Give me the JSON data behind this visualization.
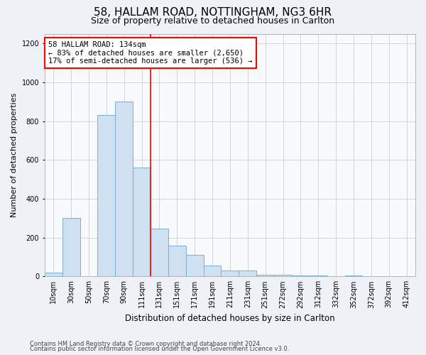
{
  "title": "58, HALLAM ROAD, NOTTINGHAM, NG3 6HR",
  "subtitle": "Size of property relative to detached houses in Carlton",
  "xlabel": "Distribution of detached houses by size in Carlton",
  "ylabel": "Number of detached properties",
  "categories": [
    "10sqm",
    "30sqm",
    "50sqm",
    "70sqm",
    "90sqm",
    "111sqm",
    "131sqm",
    "151sqm",
    "171sqm",
    "191sqm",
    "211sqm",
    "231sqm",
    "251sqm",
    "272sqm",
    "292sqm",
    "312sqm",
    "332sqm",
    "352sqm",
    "372sqm",
    "392sqm",
    "412sqm"
  ],
  "values": [
    20,
    300,
    0,
    830,
    900,
    560,
    245,
    160,
    110,
    55,
    30,
    30,
    10,
    10,
    5,
    5,
    0,
    5,
    0,
    0,
    0
  ],
  "bar_color": "#cfe0f0",
  "bar_edge_color": "#7bafd4",
  "annotation_text": "58 HALLAM ROAD: 134sqm\n← 83% of detached houses are smaller (2,650)\n17% of semi-detached houses are larger (536) →",
  "annotation_box_color": "white",
  "annotation_box_edge": "red",
  "ylim": [
    0,
    1250
  ],
  "yticks": [
    0,
    200,
    400,
    600,
    800,
    1000,
    1200
  ],
  "red_line_bin": 6,
  "footer1": "Contains HM Land Registry data © Crown copyright and database right 2024.",
  "footer2": "Contains public sector information licensed under the Open Government Licence v3.0.",
  "background_color": "#eef2f7",
  "plot_background": "#f8f9fb",
  "grid_color": "#c8d0dc",
  "title_fontsize": 11,
  "subtitle_fontsize": 9,
  "ylabel_fontsize": 8,
  "xlabel_fontsize": 8.5,
  "tick_fontsize": 7,
  "annotation_fontsize": 7.5,
  "footer_fontsize": 6
}
